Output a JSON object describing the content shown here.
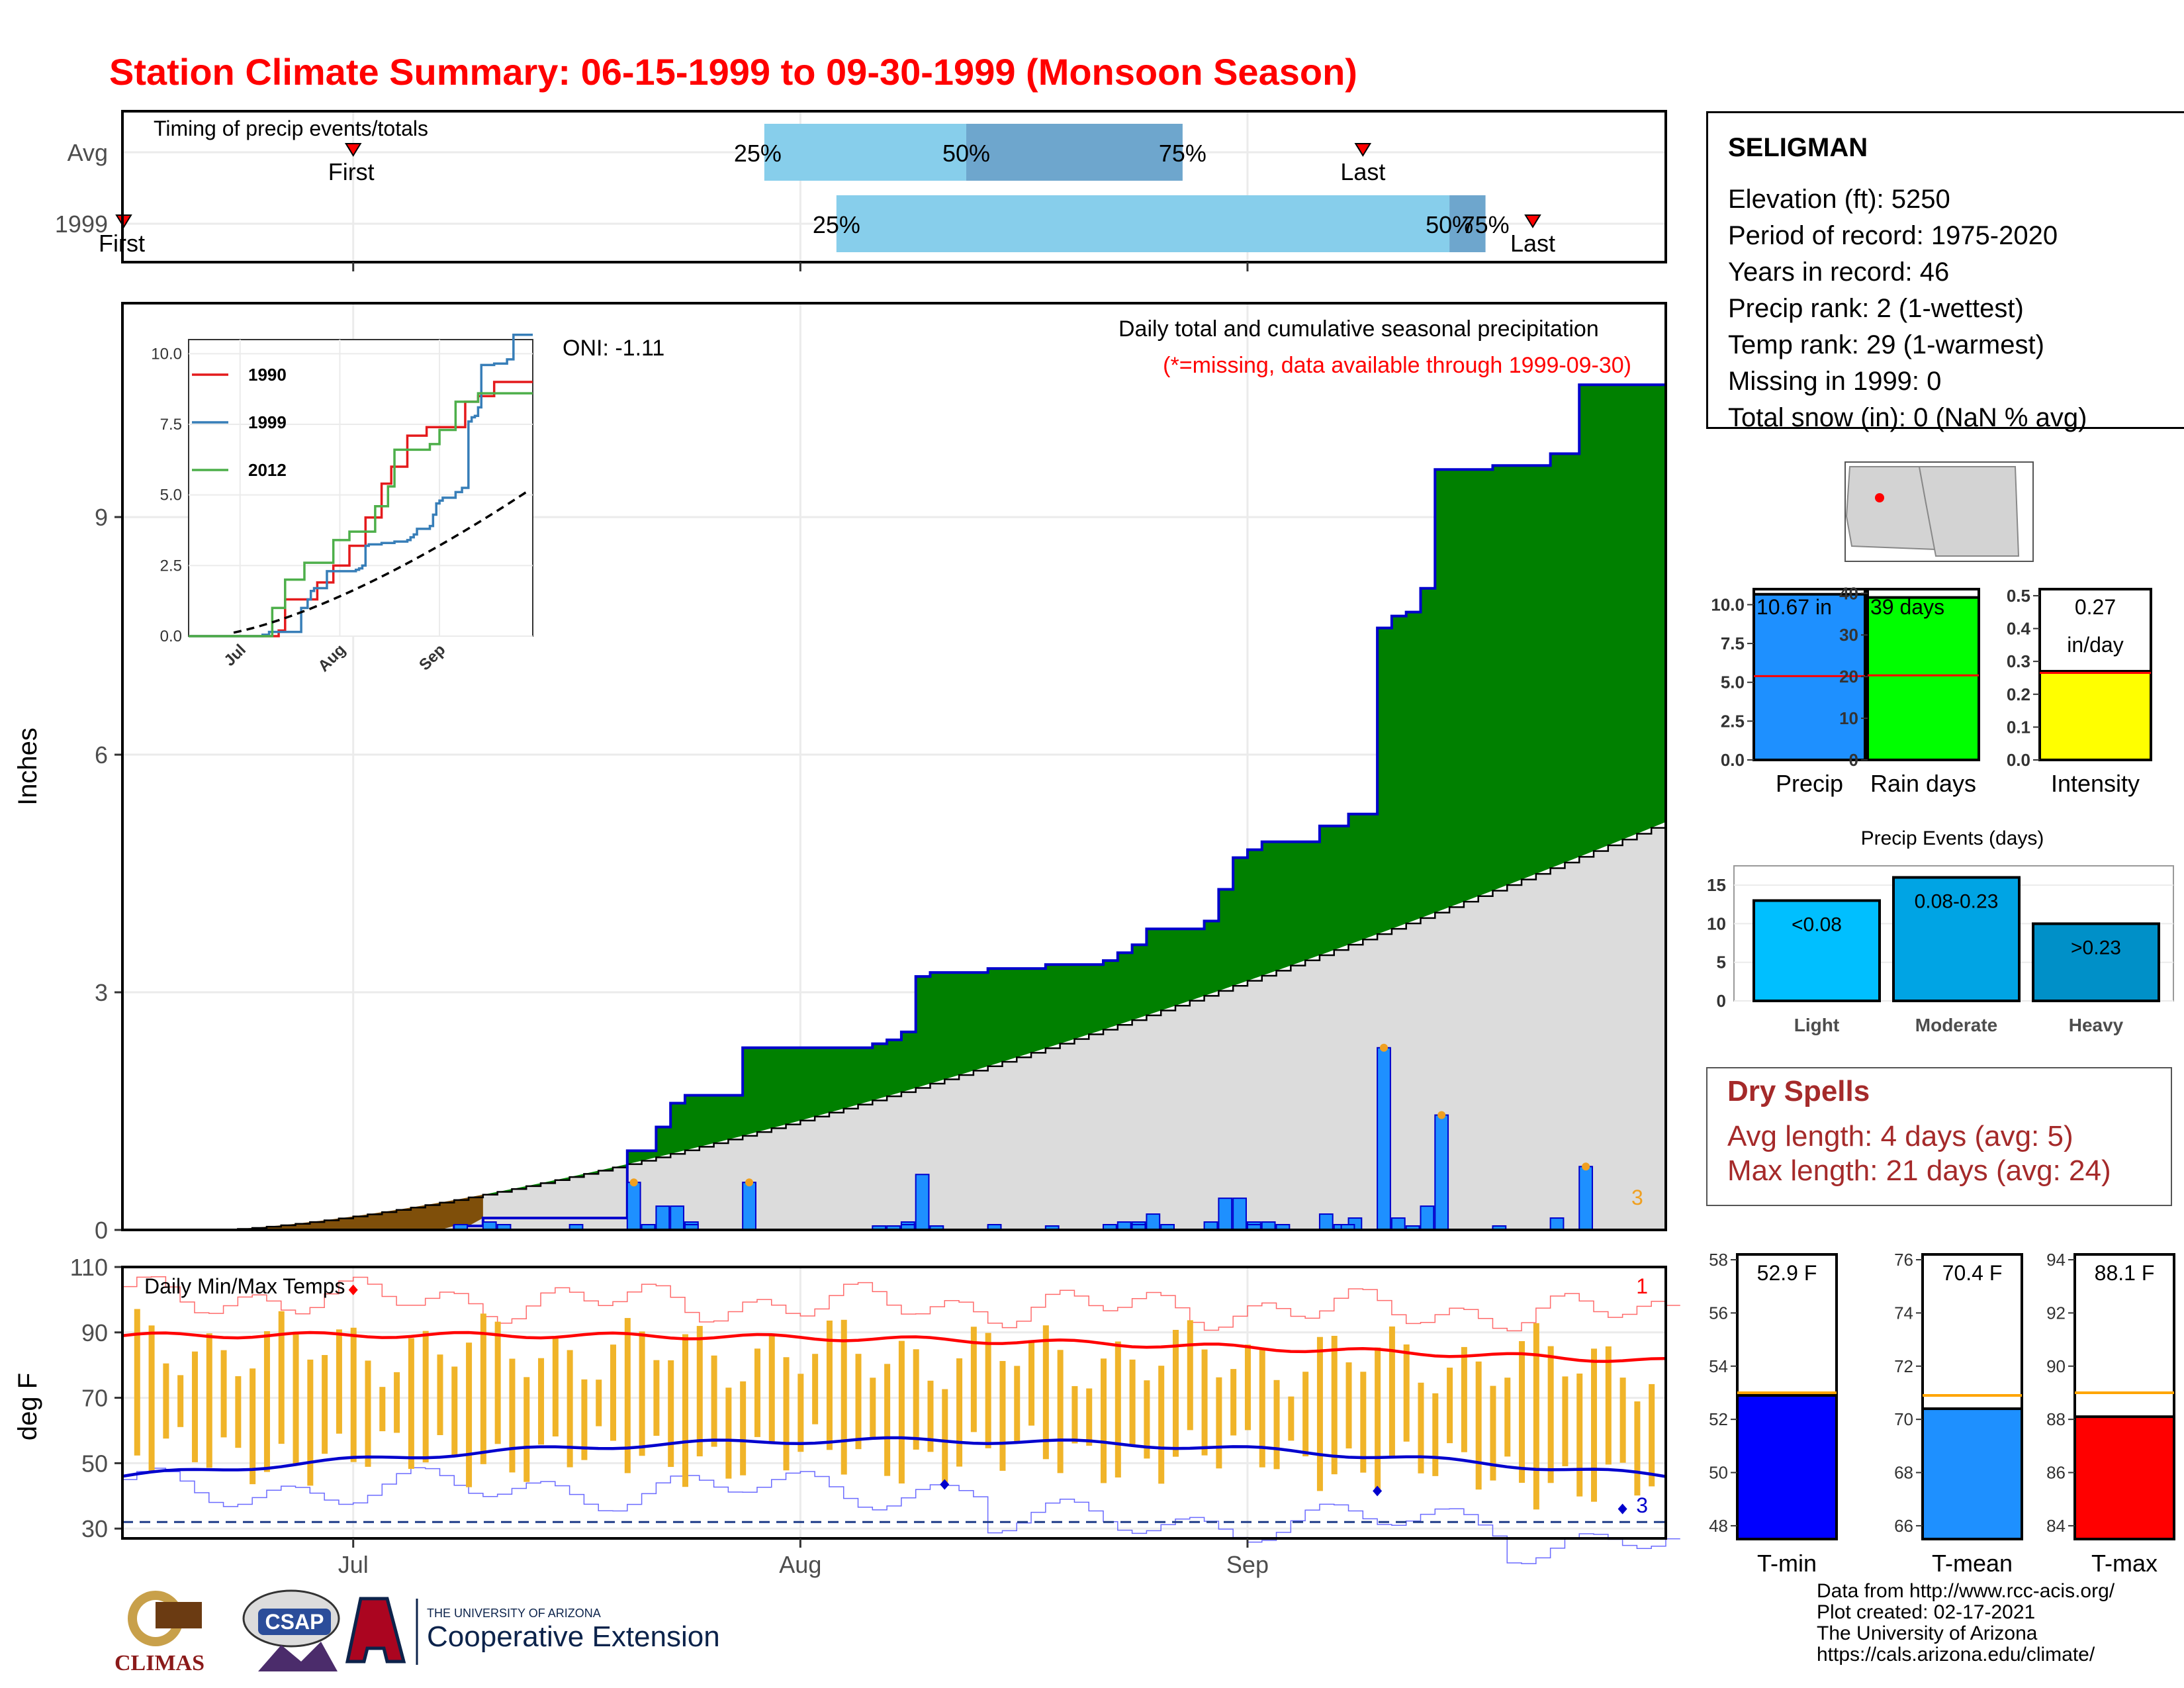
{
  "title": "Station Climate Summary: 06-15-1999 to 09-30-1999 (Monsoon Season)",
  "colors": {
    "title": "#ff0000",
    "cumulative_fill": "#008000",
    "normal_fill": "#dcdcdc",
    "early_fill": "#7f4f0a",
    "daily_bar": "#1e90ff",
    "quartile_light": "#87ceeb",
    "quartile_dark": "#6ea6cd",
    "temp_bar": "#f0b429",
    "max_line": "#ff0000",
    "min_line": "#0000cd",
    "dry_spells": "#a52a2a"
  },
  "timing_panel": {
    "label": "Timing of precip events/totals",
    "rows": [
      "Avg",
      "1999"
    ],
    "avg": {
      "first": "First",
      "last": "Last",
      "p25": "25%",
      "p50": "50%",
      "p75": "75%"
    },
    "year": {
      "first": "First",
      "last": "Last",
      "p25": "25%",
      "p50": "50%",
      "p75": "75%"
    }
  },
  "precip_panel": {
    "ylabel": "Inches",
    "oni": "ONI: -1.11",
    "caption": "Daily total and cumulative seasonal precipitation",
    "missing_note": "(*=missing, data available through 1999-09-30)",
    "count_label": "3",
    "y_ticks": [
      "0",
      "3",
      "6",
      "9"
    ]
  },
  "inset": {
    "series_names": [
      "1990",
      "1999",
      "2012"
    ],
    "y_ticks": [
      "0.0",
      "2.5",
      "5.0",
      "7.5",
      "10.0"
    ],
    "x_ticks": [
      "Jul",
      "Aug",
      "Sep"
    ]
  },
  "temp_panel": {
    "label": "Daily Min/Max Temps",
    "ylabel": "deg F",
    "y_ticks": [
      "30",
      "50",
      "70",
      "90",
      "110"
    ],
    "max_count": "1",
    "min_count": "3"
  },
  "x_ticks": [
    "Jul",
    "Aug",
    "Sep"
  ],
  "station": {
    "name": "SELIGMAN",
    "elevation": "Elevation (ft): 5250",
    "period": "Period of record: 1975-2020",
    "years": "Years in record: 46",
    "precip_rank": "Precip rank: 2 (1-wettest)",
    "temp_rank": "Temp rank: 29 (1-warmest)",
    "missing": "Missing in 1999: 0",
    "snow": "Total snow (in): 0 (NaN % avg)"
  },
  "summary_bars": {
    "precip": {
      "label": "Precip",
      "value_text": "10.67 in",
      "ticks": [
        "0.0",
        "2.5",
        "5.0",
        "7.5",
        "10.0"
      ]
    },
    "rain_days": {
      "label": "Rain days",
      "value_text": "39 days",
      "ticks": [
        "0",
        "10",
        "20",
        "30",
        "40"
      ]
    },
    "intensity": {
      "label": "Intensity",
      "value_text": "0.27",
      "value_unit": "in/day",
      "ticks": [
        "0.0",
        "0.1",
        "0.2",
        "0.3",
        "0.4",
        "0.5"
      ]
    }
  },
  "events": {
    "title": "Precip Events (days)",
    "categories": [
      "Light",
      "Moderate",
      "Heavy"
    ],
    "labels": [
      "<0.08",
      "0.08-0.23",
      ">0.23"
    ],
    "ticks": [
      "0",
      "5",
      "10",
      "15"
    ]
  },
  "dry_spells": {
    "title": "Dry Spells",
    "avg": "Avg length: 4 days (avg: 5)",
    "max": "Max length: 21 days (avg: 24)"
  },
  "temp_summary": {
    "tmin": {
      "label": "T-min",
      "value_text": "52.9 F",
      "ticks": [
        "48",
        "50",
        "52",
        "54",
        "56",
        "58"
      ]
    },
    "tmean": {
      "label": "T-mean",
      "value_text": "70.4 F",
      "ticks": [
        "66",
        "68",
        "70",
        "72",
        "74",
        "76"
      ]
    },
    "tmax": {
      "label": "T-max",
      "value_text": "88.1 F",
      "ticks": [
        "84",
        "86",
        "88",
        "90",
        "92",
        "94"
      ]
    }
  },
  "credits": [
    "Data from http://www.rcc-acis.org/",
    "Plot created: 02-17-2021",
    "The University of Arizona",
    "https://cals.arizona.edu/climate/"
  ],
  "logos": {
    "climas": "CLIMAS",
    "csap": "CSAP",
    "ua_small": "THE UNIVERSITY OF ARIZONA",
    "ua_ext": "Cooperative Extension"
  },
  "chart_data": [
    {
      "type": "area",
      "title": "Daily total and cumulative seasonal precipitation",
      "ylabel": "Inches",
      "ylim": [
        0,
        11.7
      ],
      "x_dates": [
        "1999-06-15",
        "1999-07-01",
        "1999-08-01",
        "1999-09-01",
        "1999-09-30"
      ],
      "x_ticks": [
        "Jul",
        "Aug",
        "Sep"
      ],
      "cumulative_1999_steps": [
        [
          "06-15",
          0.0
        ],
        [
          "07-08",
          0.05
        ],
        [
          "07-10",
          0.15
        ],
        [
          "07-20",
          1.0
        ],
        [
          "07-22",
          1.3
        ],
        [
          "07-23",
          1.6
        ],
        [
          "07-24",
          1.7
        ],
        [
          "07-28",
          2.3
        ],
        [
          "08-06",
          2.35
        ],
        [
          "08-07",
          2.4
        ],
        [
          "08-08",
          2.5
        ],
        [
          "08-09",
          3.2
        ],
        [
          "08-10",
          3.25
        ],
        [
          "08-14",
          3.3
        ],
        [
          "08-18",
          3.35
        ],
        [
          "08-22",
          3.4
        ],
        [
          "08-23",
          3.5
        ],
        [
          "08-24",
          3.6
        ],
        [
          "08-25",
          3.8
        ],
        [
          "08-29",
          3.9
        ],
        [
          "08-30",
          4.3
        ],
        [
          "08-31",
          4.7
        ],
        [
          "09-01",
          4.8
        ],
        [
          "09-02",
          4.9
        ],
        [
          "09-06",
          5.1
        ],
        [
          "09-08",
          5.25
        ],
        [
          "09-10",
          7.6
        ],
        [
          "09-11",
          7.75
        ],
        [
          "09-12",
          7.8
        ],
        [
          "09-13",
          8.1
        ],
        [
          "09-14",
          9.6
        ],
        [
          "09-18",
          9.65
        ],
        [
          "09-22",
          9.8
        ],
        [
          "09-24",
          10.67
        ]
      ],
      "daily_precip_big": [
        [
          "07-20",
          0.6
        ],
        [
          "07-28",
          0.6
        ],
        [
          "08-09",
          0.7
        ],
        [
          "09-10",
          2.3
        ],
        [
          "09-14",
          1.45
        ],
        [
          "09-24",
          0.8
        ]
      ],
      "normal_cumulative_end": 5.15
    },
    {
      "type": "line",
      "series": [
        {
          "name": "1990",
          "end_value": 9.0
        },
        {
          "name": "1999",
          "end_value": 10.67
        },
        {
          "name": "2012",
          "end_value": 8.6
        }
      ],
      "ylim": [
        0,
        10.5
      ],
      "x_ticks": [
        "Jul",
        "Aug",
        "Sep"
      ]
    },
    {
      "type": "bar",
      "title": "Daily Min/Max Temps",
      "ylabel": "deg F",
      "ylim": [
        27,
        110
      ],
      "avg_max_range": [
        82,
        92
      ],
      "avg_min_range": [
        44,
        58
      ],
      "freeze_line": 32
    },
    {
      "type": "bar",
      "categories": [
        "Precip",
        "Rain days",
        "Intensity"
      ],
      "values": [
        10.67,
        39,
        0.27
      ],
      "averages": [
        5.4,
        20.3,
        0.265
      ],
      "ylims": [
        [
          0,
          11
        ],
        [
          0,
          41
        ],
        [
          0,
          0.52
        ]
      ]
    },
    {
      "type": "bar",
      "title": "Precip Events (days)",
      "categories": [
        "Light",
        "Moderate",
        "Heavy"
      ],
      "values": [
        13,
        16,
        10
      ],
      "ylim": [
        0,
        17.5
      ]
    },
    {
      "type": "bar",
      "categories": [
        "T-min",
        "T-mean",
        "T-max"
      ],
      "values": [
        52.9,
        70.4,
        88.1
      ],
      "averages": [
        53.0,
        70.9,
        89.0
      ],
      "ylims": [
        [
          47.5,
          58.2
        ],
        [
          65.5,
          76.2
        ],
        [
          83.5,
          94.2
        ]
      ]
    }
  ]
}
